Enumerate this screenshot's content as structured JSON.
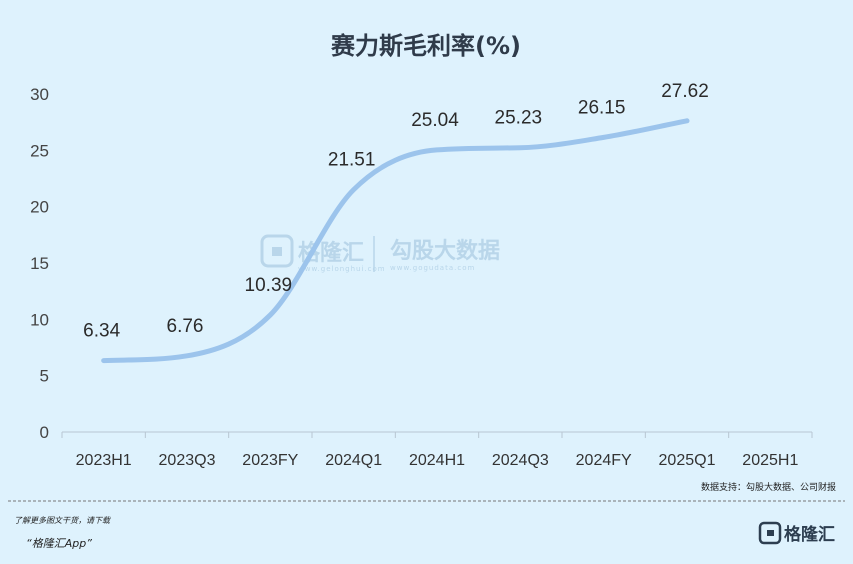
{
  "chart_data": {
    "type": "line",
    "title": "赛力斯毛利率(%)",
    "categories": [
      "2023H1",
      "2023Q3",
      "2023FY",
      "2024Q1",
      "2024H1",
      "2024Q3",
      "2024FY",
      "2025Q1",
      "2025H1"
    ],
    "values": [
      6.34,
      6.76,
      10.39,
      21.51,
      25.04,
      25.23,
      26.15,
      27.62,
      null
    ],
    "data_labels": [
      "6.34",
      "6.76",
      "10.39",
      "21.51",
      "25.04",
      "25.23",
      "26.15",
      "27.62",
      ""
    ],
    "ylim": [
      0,
      30
    ],
    "yticks": [
      "0",
      "5",
      "10",
      "15",
      "20",
      "25",
      "30"
    ],
    "grid": false,
    "line_color": "#9cc4ec"
  },
  "footer": {
    "source": "数据支持：勾股大数据、公司财报",
    "promo_line1": "了解更多图文干货，请下载",
    "promo_line2": "“格隆汇App”",
    "logo_text": "格隆汇"
  },
  "watermark": {
    "brand1": "格隆汇",
    "brand1_url": "www.gelonghui.com",
    "brand2": "勾股大数据",
    "brand2_url": "www.gogudata.com"
  }
}
